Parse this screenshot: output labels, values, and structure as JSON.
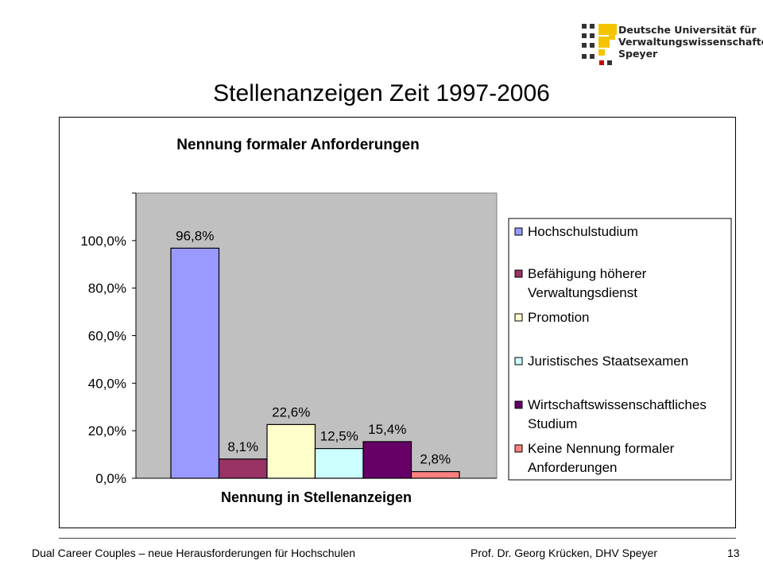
{
  "logo": {
    "lines": [
      "Deutsche Universität für",
      "Verwaltungswissenschaften",
      "Speyer"
    ],
    "colors": {
      "yellow": "#f5c400",
      "dark": "#333333",
      "red": "#cc0000"
    }
  },
  "slide_title": "Stellenanzeigen  Zeit 1997-2006",
  "chart_data": {
    "type": "bar",
    "title": "Nennung formaler Anforderungen",
    "xlabel": "Nennung in Stellenanzeigen",
    "ylabel": "",
    "ylim": [
      0,
      1.2
    ],
    "yticks": [
      {
        "value": 0.0,
        "label": "0,0%"
      },
      {
        "value": 0.2,
        "label": "20,0%"
      },
      {
        "value": 0.4,
        "label": "40,0%"
      },
      {
        "value": 0.6,
        "label": "60,0%"
      },
      {
        "value": 0.8,
        "label": "80,0%"
      },
      {
        "value": 1.0,
        "label": "100,0%"
      }
    ],
    "plot_background": "#c0c0c0",
    "grid": false,
    "legend_position": "right",
    "series": [
      {
        "name": "Hochschulstudium",
        "value": 0.968,
        "label": "96,8%",
        "color": "#9999ff",
        "legend_lines": [
          "Hochschulstudium"
        ]
      },
      {
        "name": "Befähigung höherer Verwaltungsdienst",
        "value": 0.081,
        "label": "8,1%",
        "color": "#993366",
        "legend_lines": [
          "Befähigung höherer",
          "Verwaltungsdienst"
        ]
      },
      {
        "name": "Promotion",
        "value": 0.226,
        "label": "22,6%",
        "color": "#ffffcc",
        "legend_lines": [
          "Promotion"
        ]
      },
      {
        "name": "Juristisches Staatsexamen",
        "value": 0.125,
        "label": "12,5%",
        "color": "#ccffff",
        "legend_lines": [
          "Juristisches Staatsexamen"
        ]
      },
      {
        "name": "Wirtschaftswissenschaftliches Studium",
        "value": 0.154,
        "label": "15,4%",
        "color": "#660066",
        "legend_lines": [
          "Wirtschaftswissenschaftliches",
          "Studium"
        ]
      },
      {
        "name": "Keine Nennung formaler Anforderungen",
        "value": 0.028,
        "label": "2,8%",
        "color": "#ff8080",
        "legend_lines": [
          "Keine Nennung formaler",
          "Anforderungen"
        ]
      }
    ]
  },
  "footer": {
    "left": "Dual Career Couples – neue Herausforderungen für Hochschulen",
    "right": "Prof. Dr. Georg Krücken, DHV Speyer",
    "page_number": "13"
  }
}
